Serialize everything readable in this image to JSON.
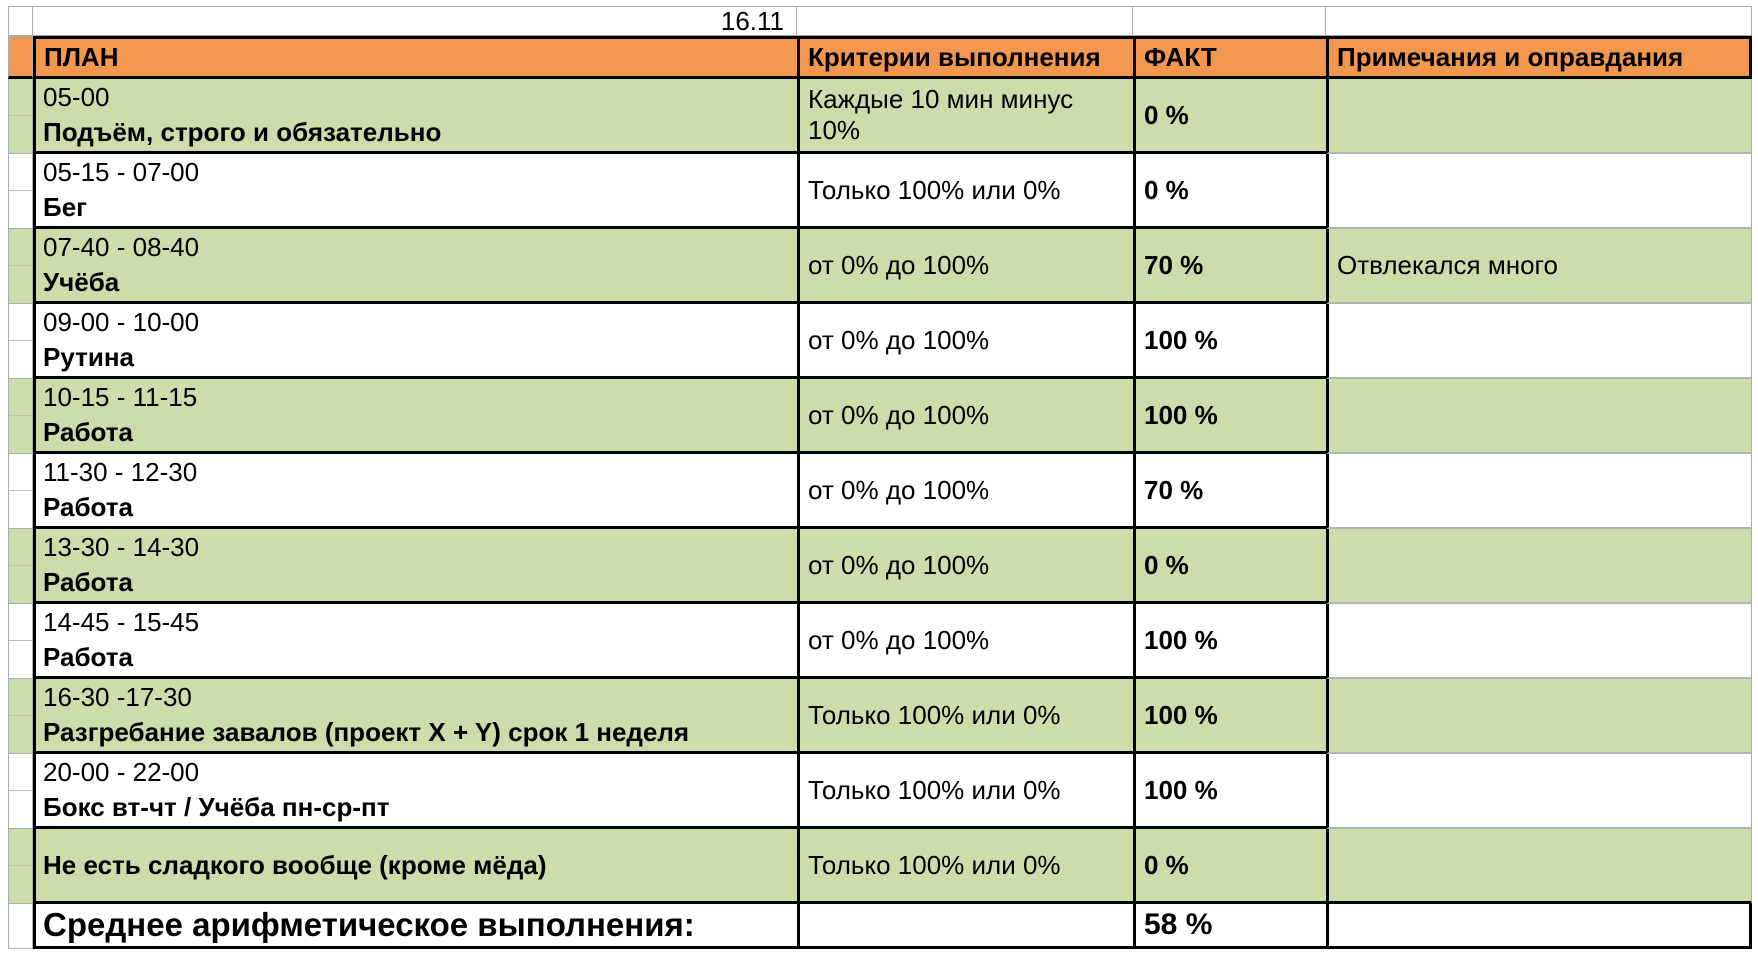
{
  "sheet": {
    "date_label": "16.11",
    "header": {
      "plan": "ПЛАН",
      "criteria": "Критерии выполнения",
      "fact": "ФАКТ",
      "notes": "Примечания и оправдания"
    },
    "rows": [
      {
        "time": "05-00",
        "title": "Подъём, строго и обязательно",
        "criteria": "Каждые 10 мин минус 10%",
        "fact": "0 %",
        "note": ""
      },
      {
        "time": "05-15 - 07-00",
        "title": "Бег",
        "criteria": "Только 100% или 0%",
        "fact": "0 %",
        "note": ""
      },
      {
        "time": "07-40 - 08-40",
        "title": "Учёба",
        "criteria": "от 0% до 100%",
        "fact": "70 %",
        "note": "Отвлекался много"
      },
      {
        "time": "09-00 - 10-00",
        "title": "Рутина",
        "criteria": "от 0% до 100%",
        "fact": "100 %",
        "note": ""
      },
      {
        "time": "10-15 - 11-15",
        "title": "Работа",
        "criteria": "от 0% до 100%",
        "fact": "100 %",
        "note": ""
      },
      {
        "time": "11-30 - 12-30",
        "title": "Работа",
        "criteria": "от 0% до 100%",
        "fact": "70 %",
        "note": ""
      },
      {
        "time": "13-30 - 14-30",
        "title": "Работа",
        "criteria": "от 0% до 100%",
        "fact": "0 %",
        "note": ""
      },
      {
        "time": "14-45 - 15-45",
        "title": "Работа",
        "criteria": "от 0% до 100%",
        "fact": "100 %",
        "note": ""
      },
      {
        "time": "16-30 -17-30",
        "title": "Разгребание завалов (проект X + Y) срок 1 неделя",
        "criteria": "Только 100% или 0%",
        "fact": "100 %",
        "note": ""
      },
      {
        "time": "20-00 - 22-00",
        "title": "Бокс вт-чт / Учёба пн-ср-пт",
        "criteria": "Только 100% или 0%",
        "fact": "100 %",
        "note": ""
      },
      {
        "time": "",
        "title": "Не есть сладкого вообще (кроме мёда)",
        "criteria": "Только 100% или 0%",
        "fact": "0 %",
        "note": ""
      }
    ],
    "summary": {
      "label": "Среднее арифметическое выполнения:",
      "fact": "58 %"
    },
    "colors": {
      "header_bg": "#F3964E",
      "row_green": "#CDDCAB",
      "grid_black": "#000000",
      "grid_gray": "#ACACAC",
      "note_divider": "#B3B3B3"
    }
  }
}
